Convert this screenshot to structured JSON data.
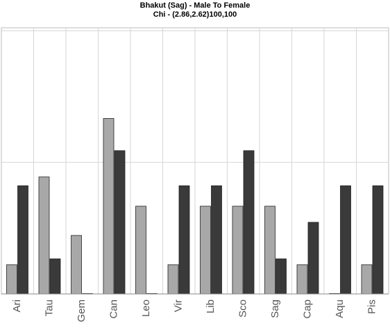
{
  "chart_data": {
    "type": "bar",
    "title": "Bhakut (Sag) - Male To Female",
    "subtitle": "Chi - (2.86,2.62)100,100",
    "categories": [
      "Ari",
      "Tau",
      "Gem",
      "Can",
      "Leo",
      "Vir",
      "Lib",
      "Sco",
      "Sag",
      "Cap",
      "Aqu",
      "Pis"
    ],
    "series": [
      {
        "values": [
          1,
          4,
          2,
          6,
          3,
          1,
          3,
          3,
          3,
          1,
          0,
          1
        ],
        "color": "#a8a8a8"
      },
      {
        "values": [
          3.7,
          1.2,
          0,
          4.9,
          0,
          3.7,
          3.7,
          4.9,
          1.2,
          2.45,
          3.7,
          3.7
        ],
        "color": "#3a3a3a"
      }
    ],
    "ylim": [
      0,
      9.1
    ],
    "y_gridlines": [
      0,
      4.5,
      9
    ],
    "grid": true,
    "show_y_tick_labels": false
  }
}
